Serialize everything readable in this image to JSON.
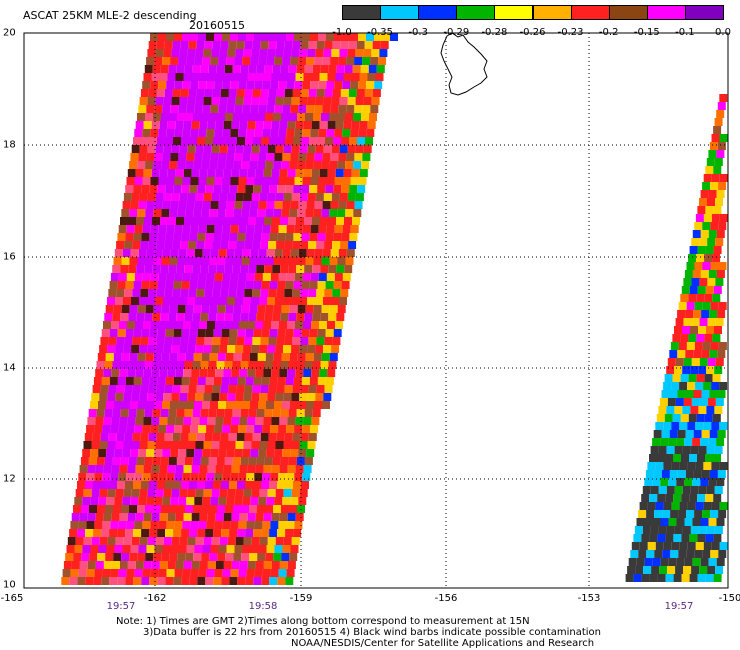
{
  "title": "ASCAT 25KM MLE-2 descending",
  "date": "20160515",
  "colorbar": {
    "labels": [
      "-1.0",
      "-0.35",
      "-0.3",
      "-0.29",
      "-0.28",
      "-0.26",
      "-0.23",
      "-0.2",
      "-0.15",
      "-0.1",
      "0.0"
    ],
    "colors": [
      "#3a3a3a",
      "#00c8ff",
      "#0030ff",
      "#00b400",
      "#ffff00",
      "#ffb000",
      "#ff2020",
      "#8b4513",
      "#ff00ff",
      "#8000c0"
    ]
  },
  "y_axis": {
    "ticks": [
      "20",
      "18",
      "16",
      "14",
      "12",
      "10"
    ]
  },
  "x_axis": {
    "ticks": [
      "-165",
      "-162",
      "-159",
      "-156",
      "-153",
      "-150"
    ]
  },
  "times": [
    "19:57",
    "19:58",
    "19:57"
  ],
  "notes": {
    "line1": "Note: 1) Times are GMT 2)Times along bottom correspond to measurement at 15N",
    "line2": "3)Data buffer is 22 hrs from 20160515 4) Black wind barbs indicate possible contamination",
    "line3": "NOAA/NESDIS/Center for Satellite Applications and Research"
  },
  "swaths": [
    {
      "name": "left-swath",
      "pattern": "purple-core with red, brown, yellow edges"
    },
    {
      "name": "right-swath",
      "pattern": "dark gray and cyan at bottom, mixed colors above"
    }
  ]
}
